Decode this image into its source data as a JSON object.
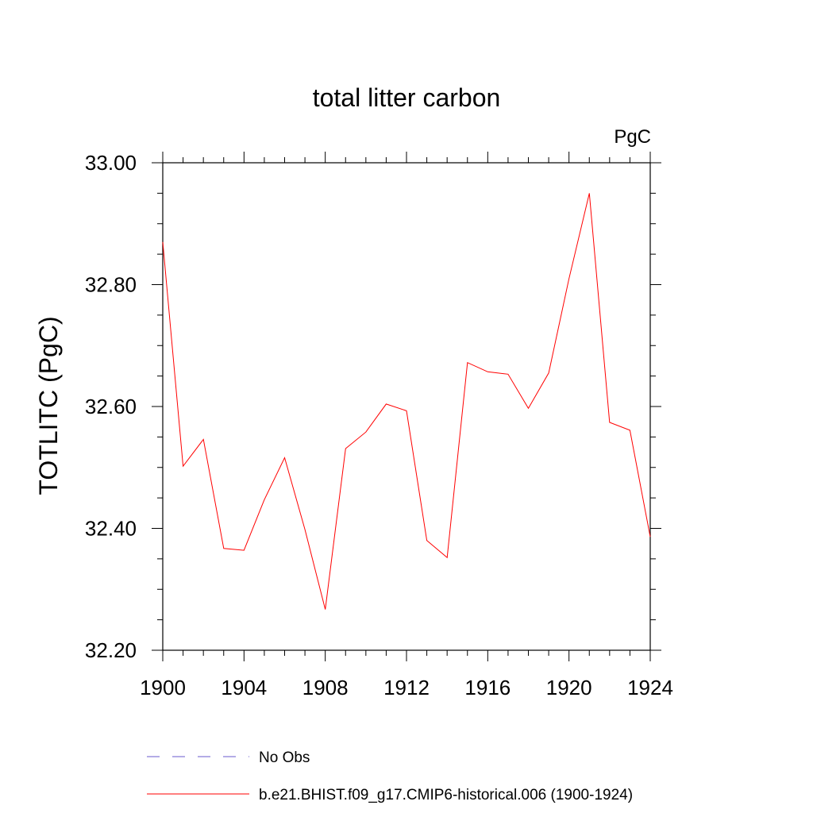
{
  "chart_data": {
    "type": "line",
    "title": "total litter carbon",
    "units_label": "PgC",
    "ylabel": "TOTLITC  (PgC)",
    "xlabel": "",
    "xlim": [
      1900,
      1924
    ],
    "ylim": [
      32.2,
      33.0
    ],
    "xticks": [
      1900,
      1904,
      1908,
      1912,
      1916,
      1920,
      1924
    ],
    "xtick_labels": [
      "1900",
      "1904",
      "1908",
      "1912",
      "1916",
      "1920",
      "1924"
    ],
    "yticks": [
      32.2,
      32.4,
      32.6,
      32.8,
      33.0
    ],
    "ytick_labels": [
      "32.20",
      "32.40",
      "32.60",
      "32.80",
      "33.00"
    ],
    "grid": false,
    "legend_position": "bottom",
    "series": [
      {
        "name": "b.e21.BHIST.f09_g17.CMIP6-historical.006 (1900-1924)",
        "color": "#ff0000",
        "style": "solid",
        "x": [
          1900,
          1901,
          1902,
          1903,
          1904,
          1905,
          1906,
          1907,
          1908,
          1909,
          1910,
          1911,
          1912,
          1913,
          1914,
          1915,
          1916,
          1917,
          1918,
          1919,
          1920,
          1921,
          1922,
          1923,
          1924
        ],
        "values": [
          32.87,
          32.502,
          32.546,
          32.367,
          32.364,
          32.447,
          32.516,
          32.398,
          32.267,
          32.531,
          32.558,
          32.604,
          32.593,
          32.38,
          32.352,
          32.672,
          32.657,
          32.653,
          32.597,
          32.655,
          32.81,
          32.95,
          32.574,
          32.561,
          32.386
        ]
      }
    ],
    "legend": [
      {
        "label": "No Obs",
        "color": "#6a5acd",
        "style": "dashed"
      },
      {
        "label": "b.e21.BHIST.f09_g17.CMIP6-historical.006 (1900-1924)",
        "color": "#ff0000",
        "style": "solid"
      }
    ]
  }
}
